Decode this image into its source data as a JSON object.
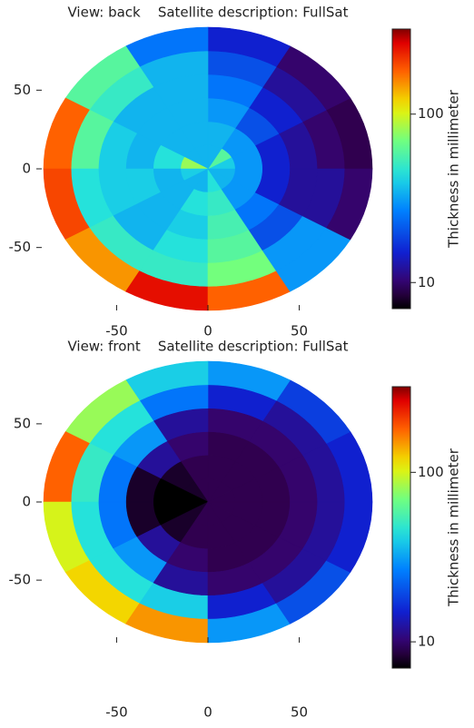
{
  "chart_data": [
    {
      "type": "polar-heatmap",
      "title": "View: back    Satellite description: FullSat",
      "xlim": [
        -90,
        90
      ],
      "ylim": [
        -90,
        90
      ],
      "xticks": [
        -50,
        0,
        50
      ],
      "yticks": [
        -50,
        0,
        50
      ],
      "r_edges": [
        0,
        15,
        30,
        45,
        60,
        75,
        90
      ],
      "theta_edges": [
        0,
        30,
        60,
        90,
        120,
        150,
        180,
        210,
        240,
        270,
        300,
        330,
        360
      ],
      "values": [
        [
          40,
          60,
          35,
          35,
          35,
          80,
          40,
          35,
          35,
          45,
          35,
          35
        ],
        [
          30,
          30,
          35,
          35,
          35,
          45,
          35,
          35,
          45,
          50,
          30,
          30
        ],
        [
          15,
          20,
          30,
          35,
          35,
          35,
          40,
          35,
          40,
          55,
          25,
          15
        ],
        [
          12,
          15,
          25,
          35,
          35,
          40,
          40,
          35,
          45,
          60,
          20,
          12
        ],
        [
          10,
          12,
          20,
          35,
          50,
          60,
          45,
          50,
          50,
          70,
          30,
          12
        ],
        [
          9,
          10,
          15,
          25,
          60,
          180,
          200,
          150,
          250,
          180,
          30,
          10
        ]
      ],
      "colormap": "rainbow",
      "log_color": true,
      "clim": [
        7,
        320
      ],
      "cticks": [
        10,
        100
      ],
      "clabel": "Thickness in millimeter"
    },
    {
      "type": "polar-heatmap",
      "title": "View: front    Satellite description: FullSat",
      "xlim": [
        -90,
        90
      ],
      "ylim": [
        -90,
        90
      ],
      "xticks": [
        -50,
        0,
        50
      ],
      "yticks": [
        -50,
        0,
        50
      ],
      "r_edges": [
        0,
        15,
        30,
        45,
        60,
        75,
        90
      ],
      "theta_edges": [
        0,
        30,
        60,
        90,
        120,
        150,
        180,
        210,
        240,
        270,
        300,
        330,
        360
      ],
      "values": [
        [
          9,
          9,
          9,
          9,
          8,
          7,
          7,
          8,
          9,
          9,
          9,
          9
        ],
        [
          9,
          9,
          9,
          9,
          8,
          7,
          7,
          8,
          9,
          9,
          9,
          9
        ],
        [
          9,
          9,
          9,
          10,
          12,
          8,
          8,
          12,
          10,
          9,
          9,
          9
        ],
        [
          10,
          10,
          10,
          12,
          30,
          25,
          25,
          30,
          12,
          10,
          10,
          10
        ],
        [
          12,
          12,
          15,
          25,
          45,
          50,
          45,
          45,
          40,
          15,
          12,
          12
        ],
        [
          15,
          18,
          30,
          40,
          80,
          180,
          100,
          120,
          150,
          30,
          20,
          15
        ]
      ],
      "colormap": "rainbow",
      "log_color": true,
      "clim": [
        7,
        320
      ],
      "cticks": [
        10,
        100
      ],
      "clabel": "Thickness in millimeter"
    }
  ]
}
